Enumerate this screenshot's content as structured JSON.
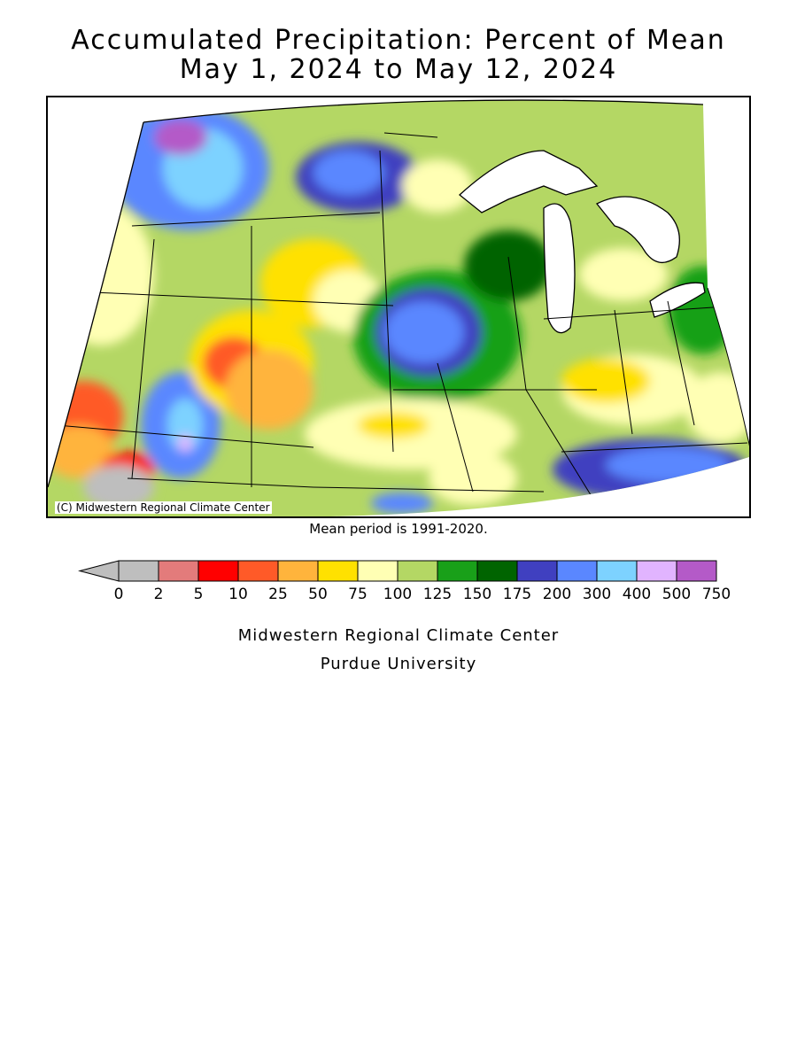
{
  "title": {
    "line1": "Accumulated Precipitation: Percent of Mean",
    "line2": "May 1, 2024 to May 12, 2024"
  },
  "map": {
    "copyright": "(C) Midwestern Regional Climate Center",
    "region": "Upper Midwest and Northern Plains, United States"
  },
  "mean_period": "Mean period is 1991-2020.",
  "legend": {
    "bins": [
      {
        "label": "0",
        "color": "#bebebe"
      },
      {
        "label": "2",
        "color": "#e37b7b"
      },
      {
        "label": "5",
        "color": "#ff0000"
      },
      {
        "label": "10",
        "color": "#ff5a28"
      },
      {
        "label": "25",
        "color": "#ffb43c"
      },
      {
        "label": "50",
        "color": "#ffe100"
      },
      {
        "label": "75",
        "color": "#ffffb4"
      },
      {
        "label": "100",
        "color": "#b4d764"
      },
      {
        "label": "125",
        "color": "#19a019"
      },
      {
        "label": "150",
        "color": "#006400"
      },
      {
        "label": "175",
        "color": "#4040c0"
      },
      {
        "label": "200",
        "color": "#5a87ff"
      },
      {
        "label": "300",
        "color": "#7dd2ff"
      },
      {
        "label": "400",
        "color": "#e1b4ff"
      },
      {
        "label": "500",
        "color": "#b45ac8"
      },
      {
        "label": "750",
        "color": null
      }
    ]
  },
  "credit": {
    "line1": "Midwestern Regional Climate Center",
    "line2": "Purdue University"
  }
}
